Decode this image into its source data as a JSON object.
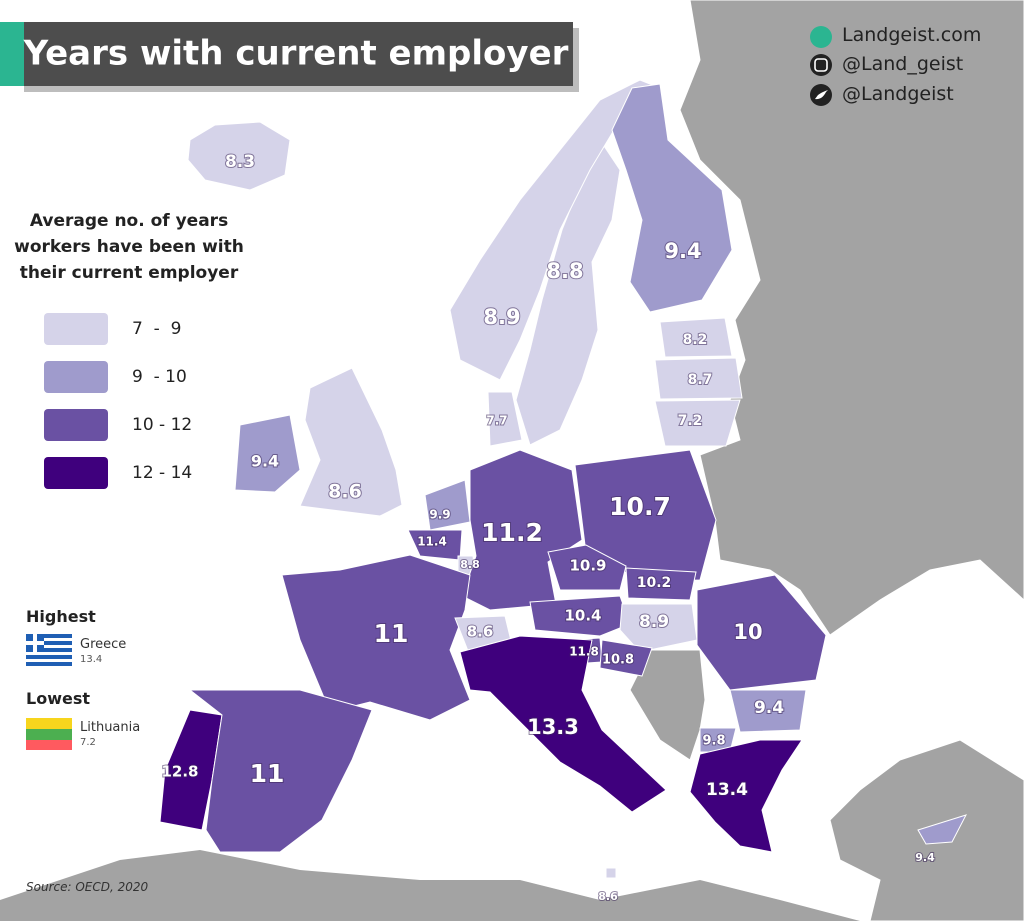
{
  "header": {
    "title": "Years with current employer",
    "links": [
      "Landgeist.com",
      "@Land_geist",
      "@Landgeist"
    ]
  },
  "legend": {
    "title": "Average no. of years workers have been with their current employer",
    "items": [
      {
        "label": "7  -  9",
        "range": [
          7,
          9
        ],
        "color": "#d5d3e9"
      },
      {
        "label": "9  - 10",
        "range": [
          9,
          10
        ],
        "color": "#9f9bcc"
      },
      {
        "label": "10 - 12",
        "range": [
          10,
          12
        ],
        "color": "#6a51a3"
      },
      {
        "label": "12 - 14",
        "range": [
          12,
          14
        ],
        "color": "#3f007d"
      }
    ]
  },
  "map": {
    "values": [
      8.3,
      8.8,
      8.9,
      9.4,
      8.2,
      8.7,
      7.2,
      7.7,
      9.4,
      8.6,
      9.9,
      11.4,
      8.8,
      11.2,
      10.7,
      10.9,
      10.2,
      10.4,
      8.9,
      10,
      11,
      8.6,
      11.8,
      10.8,
      13.3,
      9.4,
      9.8,
      13.4,
      12.8,
      11,
      9.4,
      8.6
    ]
  },
  "highest": {
    "heading": "Highest",
    "country": "Greece",
    "value": 13.4
  },
  "lowest": {
    "heading": "Lowest",
    "country": "Lithuania",
    "value": 7.2
  },
  "source": "Source: OECD, 2020"
}
